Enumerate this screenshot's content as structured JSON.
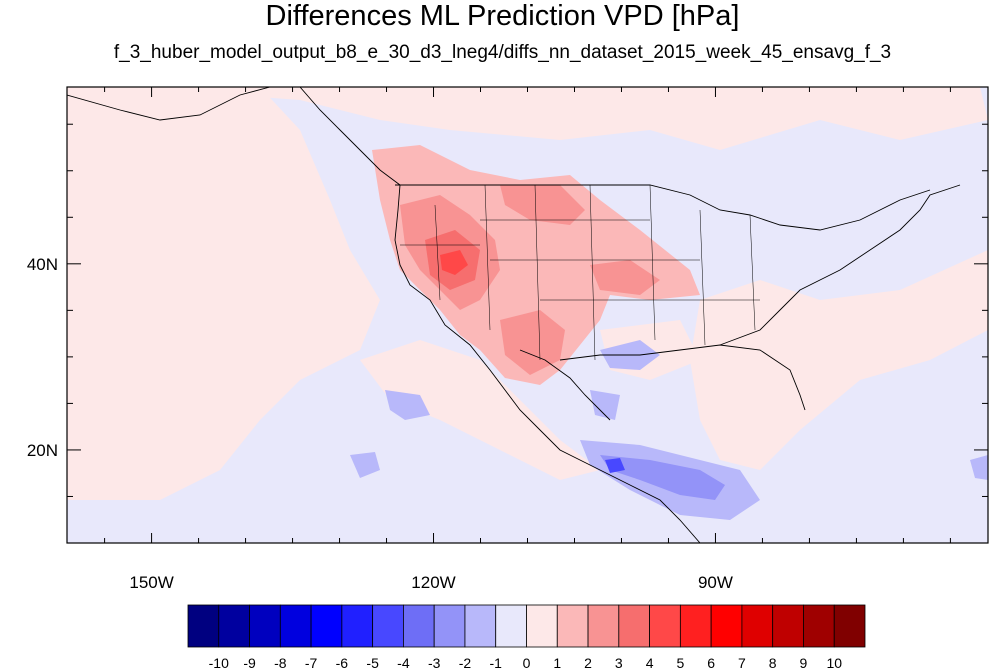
{
  "title": "Differences ML Prediction VPD [hPa]",
  "subtitle": "f_3_huber_model_output_b8_e_30_d3_lneg4/diffs_nn_dataset_2015_week_45_ensavg_f_3",
  "map": {
    "lon_range": [
      -159,
      -61
    ],
    "lat_range": [
      10,
      59
    ],
    "lon_ticks": [
      {
        "value": -150,
        "label": "150W"
      },
      {
        "value": -120,
        "label": "120W"
      },
      {
        "value": -90,
        "label": "90W"
      }
    ],
    "lat_ticks": [
      {
        "value": 40,
        "label": "40N"
      },
      {
        "value": 20,
        "label": "20N"
      }
    ],
    "colors": {
      "land_outline": "#000000",
      "background_field": "#e8e8fb"
    }
  },
  "colorbar": {
    "labels": [
      "-10",
      "-9",
      "-8",
      "-7",
      "-6",
      "-5",
      "-4",
      "-3",
      "-2",
      "-1",
      "0",
      "1",
      "2",
      "3",
      "4",
      "5",
      "6",
      "7",
      "8",
      "9",
      "10"
    ],
    "colors": [
      "#000080",
      "#00009f",
      "#0000bf",
      "#0000df",
      "#0000ff",
      "#2020ff",
      "#4848ff",
      "#6e6ef6",
      "#9393f8",
      "#b8b8fa",
      "#e8e8fb",
      "#fde8e8",
      "#fbb8b8",
      "#f89393",
      "#f66e6e",
      "#ff4848",
      "#ff2020",
      "#ff0000",
      "#df0000",
      "#bf0000",
      "#9f0000",
      "#800000"
    ]
  }
}
